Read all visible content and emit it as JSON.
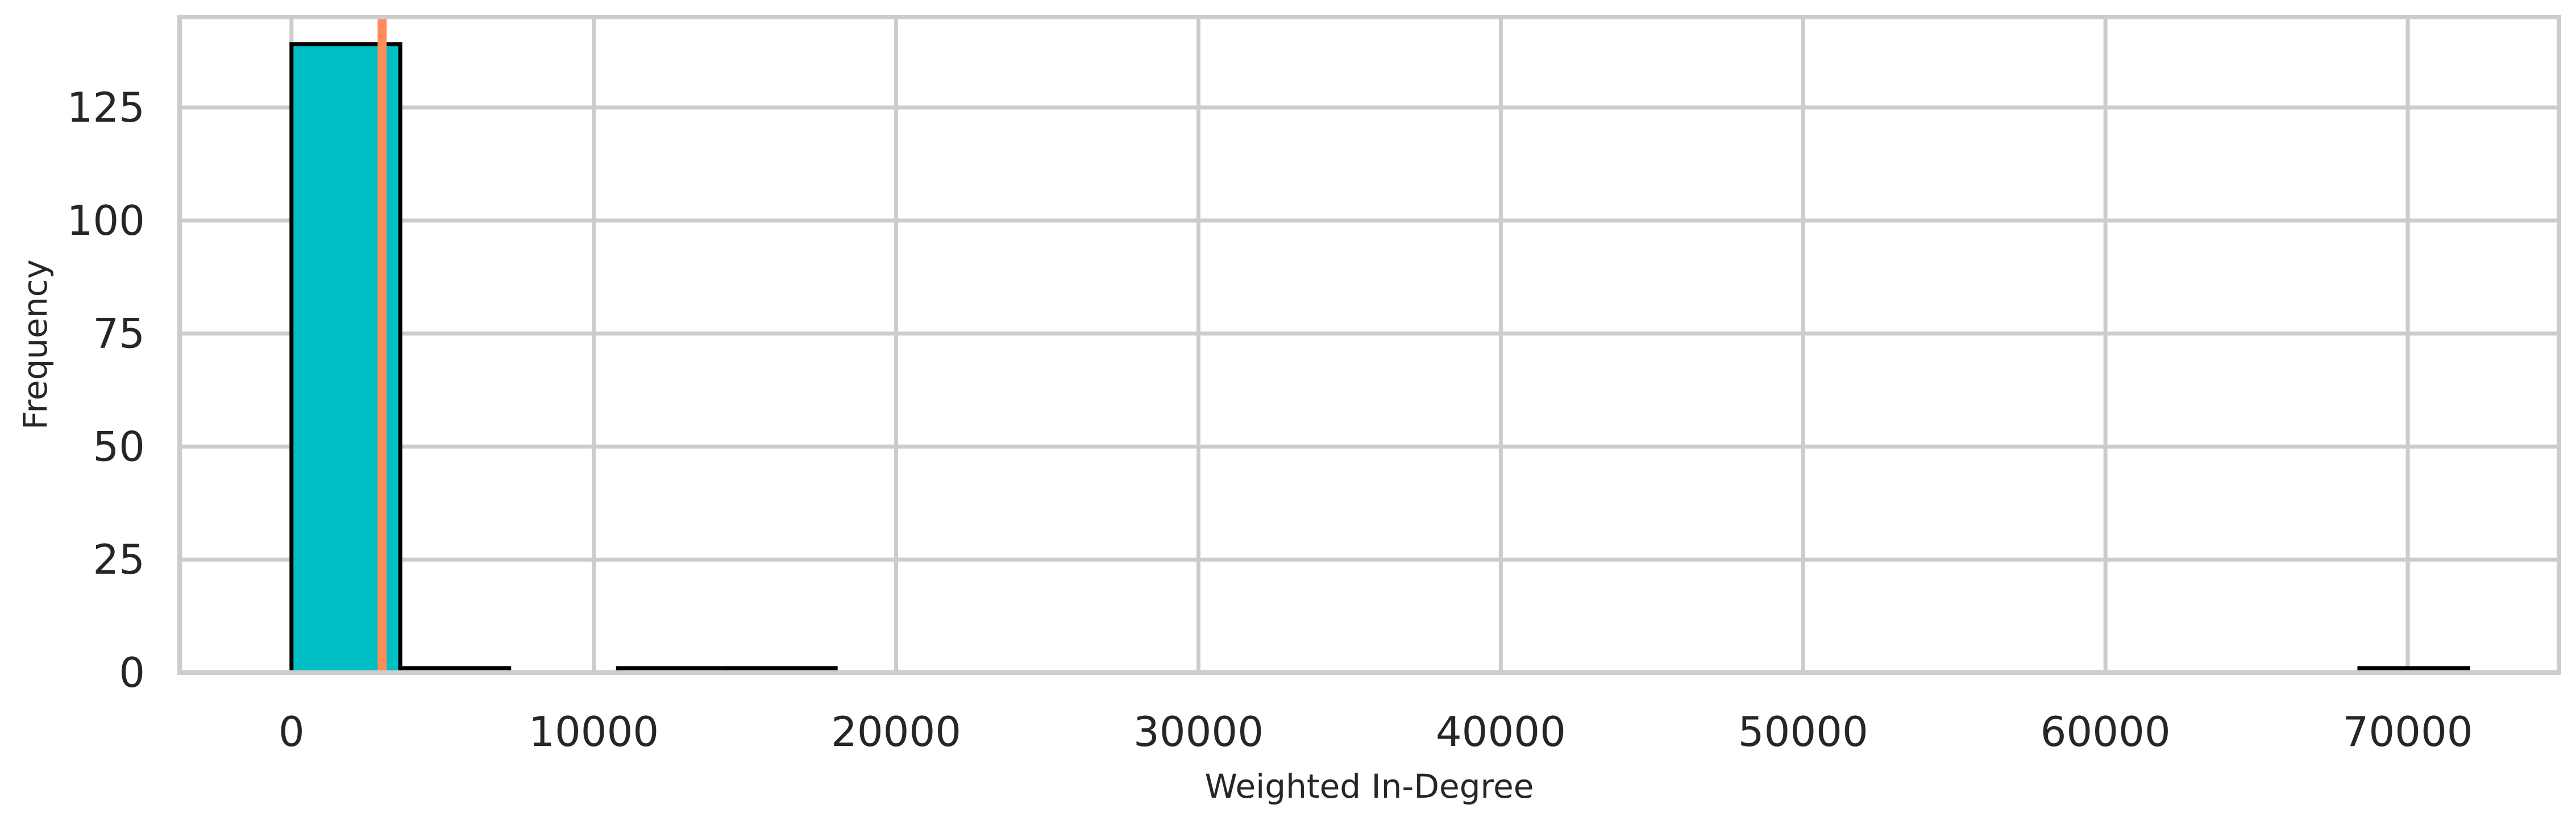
{
  "chart_data": {
    "type": "bar",
    "title": "",
    "xlabel": "Weighted In-Degree",
    "ylabel": "Frequency",
    "xlim": [
      -3700,
      75000
    ],
    "ylim": [
      0,
      145
    ],
    "xticks": [
      0,
      10000,
      20000,
      30000,
      40000,
      50000,
      60000,
      70000
    ],
    "xtick_labels": [
      "0",
      "10000",
      "20000",
      "30000",
      "40000",
      "50000",
      "60000",
      "70000"
    ],
    "yticks": [
      0,
      25,
      50,
      75,
      100,
      125
    ],
    "ytick_labels": [
      "0",
      "25",
      "50",
      "75",
      "100",
      "125"
    ],
    "grid": true,
    "bins": [
      {
        "x0": 0,
        "x1": 3600,
        "count": 139
      },
      {
        "x0": 3600,
        "x1": 7200,
        "count": 1
      },
      {
        "x0": 10800,
        "x1": 14400,
        "count": 1
      },
      {
        "x0": 14400,
        "x1": 18000,
        "count": 1
      },
      {
        "x0": 68400,
        "x1": 72000,
        "count": 1
      }
    ],
    "reference_line": {
      "x": 3000,
      "color": "#ff8c5a"
    },
    "bar_color": "#00bfc4",
    "bar_edge_color": "#000000",
    "grid_color": "#cccccc"
  }
}
